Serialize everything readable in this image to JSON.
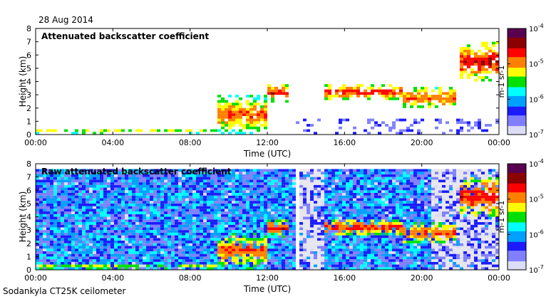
{
  "figure": {
    "date": "28 Aug 2014",
    "instrument": "Sodankyla CT25K ceilometer"
  },
  "colors": {
    "background": "#ffffff",
    "clear_air": "#e6e6ee",
    "scale": [
      "#dcdcf5",
      "#8080ff",
      "#1c1cff",
      "#00a0ff",
      "#00ffff",
      "#00e000",
      "#ffff00",
      "#ff8000",
      "#ff0000",
      "#8b0000",
      "#5a0050"
    ]
  },
  "chart_data": [
    {
      "type": "heatmap",
      "title": "Attenuated backscatter coefficient",
      "xlabel": "Time (UTC)",
      "ylabel": "Height (km)",
      "x_tick_labels": [
        "00:00",
        "04:00",
        "08:00",
        "12:00",
        "16:00",
        "20:00",
        "00:00"
      ],
      "x_ticks_hours": [
        0,
        4,
        8,
        12,
        16,
        20,
        24
      ],
      "xlim_hours": [
        0,
        24
      ],
      "ylim_km": [
        0,
        8
      ],
      "y_tick_labels": [
        "0",
        "1",
        "2",
        "3",
        "4",
        "5",
        "6",
        "7",
        "8"
      ],
      "colorbar": {
        "label": "m-1 sr-1",
        "scale": "log",
        "range": [
          1e-07,
          0.0001
        ],
        "tick_bases": [
          "10",
          "10",
          "10",
          "10"
        ],
        "tick_exponents": [
          "-7",
          "-6",
          "-5",
          "-4"
        ]
      },
      "noise_level": 0.0,
      "layers": [
        {
          "t": [
            0,
            9.5
          ],
          "h": [
            0.1,
            0.35
          ],
          "logv": [
            -5.6,
            -5.0
          ]
        },
        {
          "t": [
            9.5,
            12.0
          ],
          "h": [
            0.0,
            3.0
          ],
          "logv": [
            -5.8,
            -4.8
          ]
        },
        {
          "t": [
            12.0,
            13.2
          ],
          "h": [
            2.5,
            3.8
          ],
          "logv": [
            -5.6,
            -4.6
          ]
        },
        {
          "t": [
            15.0,
            19.0
          ],
          "h": [
            2.6,
            3.8
          ],
          "logv": [
            -5.6,
            -4.6
          ]
        },
        {
          "t": [
            19.0,
            21.8
          ],
          "h": [
            2.0,
            3.5
          ],
          "logv": [
            -5.5,
            -4.8
          ]
        },
        {
          "t": [
            22.0,
            24.0
          ],
          "h": [
            4.0,
            7.0
          ],
          "logv": [
            -5.5,
            -4.6
          ]
        }
      ]
    },
    {
      "type": "heatmap",
      "title": "Raw attenuated backscatter coefficient",
      "xlabel": "Time (UTC)",
      "ylabel": "Height (km)",
      "x_tick_labels": [
        "00:00",
        "04:00",
        "08:00",
        "12:00",
        "16:00",
        "20:00",
        "00:00"
      ],
      "x_ticks_hours": [
        0,
        4,
        8,
        12,
        16,
        20,
        24
      ],
      "xlim_hours": [
        0,
        24
      ],
      "ylim_km": [
        0,
        8
      ],
      "y_tick_labels": [
        "0",
        "1",
        "2",
        "3",
        "4",
        "5",
        "6",
        "7",
        "8"
      ],
      "colorbar": {
        "label": "m-1 sr-1",
        "scale": "log",
        "range": [
          1e-07,
          0.0001
        ],
        "tick_bases": [
          "10",
          "10",
          "10",
          "10"
        ],
        "tick_exponents": [
          "-7",
          "-6",
          "-5",
          "-4"
        ]
      },
      "noise_level": 1.0,
      "data_gap_hours": [
        13.4,
        13.6
      ],
      "layers": [
        {
          "t": [
            0,
            9.5
          ],
          "h": [
            0.1,
            0.35
          ],
          "logv": [
            -5.6,
            -5.0
          ]
        },
        {
          "t": [
            9.5,
            12.0
          ],
          "h": [
            0.0,
            3.0
          ],
          "logv": [
            -5.8,
            -4.8
          ]
        },
        {
          "t": [
            12.0,
            13.2
          ],
          "h": [
            2.5,
            3.8
          ],
          "logv": [
            -5.6,
            -4.6
          ]
        },
        {
          "t": [
            15.0,
            19.0
          ],
          "h": [
            2.6,
            3.8
          ],
          "logv": [
            -5.6,
            -4.6
          ]
        },
        {
          "t": [
            19.0,
            21.8
          ],
          "h": [
            2.0,
            3.5
          ],
          "logv": [
            -5.5,
            -4.8
          ]
        },
        {
          "t": [
            22.0,
            24.0
          ],
          "h": [
            4.0,
            7.0
          ],
          "logv": [
            -5.5,
            -4.6
          ]
        }
      ]
    }
  ]
}
